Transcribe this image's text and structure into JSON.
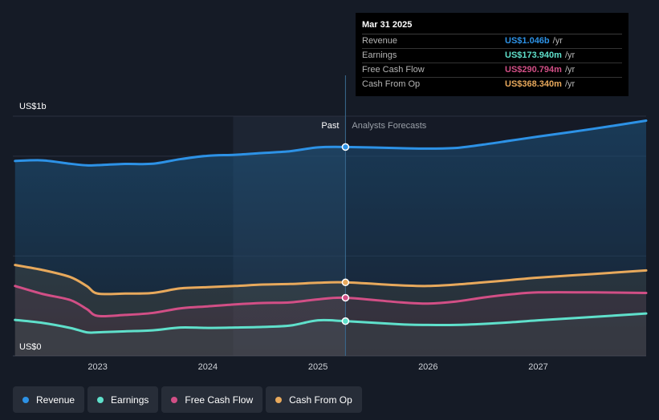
{
  "chart_data": {
    "type": "line",
    "title": "",
    "xlabel": "",
    "ylabel": "",
    "y_axis_labels": [
      "US$1b",
      "US$0"
    ],
    "ylim": [
      0,
      1.2
    ],
    "xlim": [
      2022.23,
      2027.98
    ],
    "x_ticks": [
      2023,
      2024,
      2025,
      2026,
      2027
    ],
    "x_tick_labels": [
      "2023",
      "2024",
      "2025",
      "2026",
      "2027"
    ],
    "divider_x": 2025.25,
    "past_label": "Past",
    "forecast_label": "Analysts Forecasts",
    "series": [
      {
        "name": "Revenue",
        "color": "#2d92e6",
        "x": [
          2022.25,
          2022.5,
          2022.75,
          2022.9,
          2023.0,
          2023.25,
          2023.5,
          2023.75,
          2024.0,
          2024.25,
          2024.5,
          2024.75,
          2025.0,
          2025.25,
          2025.75,
          2026.0,
          2026.25,
          2026.5,
          2026.75,
          2027.0,
          2027.5,
          2027.98
        ],
        "y": [
          0.976,
          0.979,
          0.962,
          0.954,
          0.955,
          0.961,
          0.962,
          0.985,
          1.002,
          1.007,
          1.016,
          1.025,
          1.044,
          1.046,
          1.04,
          1.038,
          1.041,
          1.058,
          1.078,
          1.098,
          1.137,
          1.178
        ]
      },
      {
        "name": "Earnings",
        "color": "#5fe0cb",
        "x": [
          2022.25,
          2022.5,
          2022.75,
          2022.9,
          2023.0,
          2023.25,
          2023.5,
          2023.75,
          2024.0,
          2024.25,
          2024.5,
          2024.75,
          2025.0,
          2025.25,
          2025.75,
          2026.0,
          2026.25,
          2026.5,
          2026.75,
          2027.0,
          2027.5,
          2027.98
        ],
        "y": [
          0.18,
          0.165,
          0.14,
          0.118,
          0.118,
          0.123,
          0.128,
          0.142,
          0.14,
          0.142,
          0.145,
          0.152,
          0.178,
          0.174,
          0.158,
          0.155,
          0.155,
          0.16,
          0.168,
          0.178,
          0.195,
          0.212
        ]
      },
      {
        "name": "Free Cash Flow",
        "color": "#d24f86",
        "x": [
          2022.25,
          2022.5,
          2022.75,
          2022.9,
          2023.0,
          2023.25,
          2023.5,
          2023.75,
          2024.0,
          2024.25,
          2024.5,
          2024.75,
          2025.0,
          2025.25,
          2025.75,
          2026.0,
          2026.25,
          2026.5,
          2026.75,
          2027.0,
          2027.5,
          2027.98
        ],
        "y": [
          0.35,
          0.31,
          0.28,
          0.235,
          0.2,
          0.205,
          0.215,
          0.238,
          0.248,
          0.258,
          0.265,
          0.268,
          0.283,
          0.291,
          0.268,
          0.262,
          0.272,
          0.292,
          0.308,
          0.318,
          0.318,
          0.315
        ]
      },
      {
        "name": "Cash From Op",
        "color": "#e8a95c",
        "x": [
          2022.25,
          2022.5,
          2022.75,
          2022.9,
          2023.0,
          2023.25,
          2023.5,
          2023.75,
          2024.0,
          2024.25,
          2024.5,
          2024.75,
          2025.0,
          2025.25,
          2025.75,
          2026.0,
          2026.25,
          2026.5,
          2026.75,
          2027.0,
          2027.5,
          2027.98
        ],
        "y": [
          0.455,
          0.43,
          0.395,
          0.35,
          0.312,
          0.312,
          0.315,
          0.338,
          0.344,
          0.35,
          0.357,
          0.36,
          0.366,
          0.368,
          0.353,
          0.35,
          0.357,
          0.368,
          0.38,
          0.392,
          0.41,
          0.428
        ]
      }
    ]
  },
  "tooltip": {
    "date": "Mar 31 2025",
    "rows": [
      {
        "label": "Revenue",
        "value": "US$1.046b",
        "unit": "/yr",
        "color": "#2d92e6"
      },
      {
        "label": "Earnings",
        "value": "US$173.940m",
        "unit": "/yr",
        "color": "#5fe0cb"
      },
      {
        "label": "Free Cash Flow",
        "value": "US$290.794m",
        "unit": "/yr",
        "color": "#d24f86"
      },
      {
        "label": "Cash From Op",
        "value": "US$368.340m",
        "unit": "/yr",
        "color": "#e8a95c"
      }
    ]
  },
  "legend": [
    {
      "label": "Revenue",
      "color": "#2d92e6"
    },
    {
      "label": "Earnings",
      "color": "#5fe0cb"
    },
    {
      "label": "Free Cash Flow",
      "color": "#d24f86"
    },
    {
      "label": "Cash From Op",
      "color": "#e8a95c"
    }
  ]
}
